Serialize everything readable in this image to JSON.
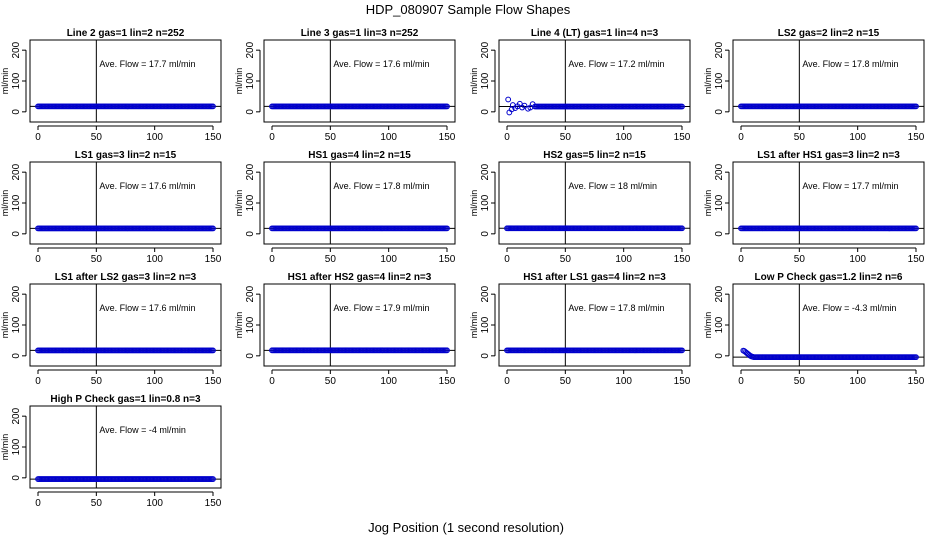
{
  "figure": {
    "title": "HDP_080907  Sample Flow Shapes",
    "xlabel": "Jog Position (1 second resolution)"
  },
  "colors": {
    "points": "#0000cc",
    "frame": "#000000"
  },
  "chart_data": [
    {
      "type": "scatter",
      "title": "Line 2 gas=1 lin=2 n=252",
      "annotation": "Ave. Flow =  17.7  ml/min",
      "ylabel": "ml/min",
      "xlim": [
        0,
        150
      ],
      "ylim": [
        -20,
        220
      ],
      "xticks": [
        0,
        50,
        100,
        150
      ],
      "yticks": [
        0,
        100,
        200
      ],
      "vline_x": 50,
      "hline_y": 17.7,
      "series": [
        {
          "name": "flow",
          "pattern": "steady",
          "x_range": [
            0,
            150
          ],
          "level": 17.7
        }
      ]
    },
    {
      "type": "scatter",
      "title": "Line 3 gas=1 lin=3 n=252",
      "annotation": "Ave. Flow =  17.6  ml/min",
      "ylabel": "ml/min",
      "xlim": [
        0,
        150
      ],
      "ylim": [
        -20,
        220
      ],
      "xticks": [
        0,
        50,
        100,
        150
      ],
      "yticks": [
        0,
        100,
        200
      ],
      "vline_x": 50,
      "hline_y": 17.6,
      "series": [
        {
          "name": "flow",
          "pattern": "steady",
          "x_range": [
            0,
            150
          ],
          "level": 17.6
        }
      ]
    },
    {
      "type": "scatter",
      "title": "Line 4 (LT) gas=1 lin=4 n=3",
      "annotation": "Ave. Flow =  17.2  ml/min",
      "ylabel": "ml/min",
      "xlim": [
        0,
        150
      ],
      "ylim": [
        -20,
        220
      ],
      "xticks": [
        0,
        50,
        100,
        150
      ],
      "yticks": [
        0,
        100,
        200
      ],
      "vline_x": 50,
      "hline_y": 17.2,
      "series": [
        {
          "name": "flow",
          "pattern": "noisy_start",
          "x_range": [
            0,
            150
          ],
          "level": 17.2,
          "outliers": [
            [
              1,
              40
            ],
            [
              2,
              -2
            ],
            [
              4,
              8
            ],
            [
              5,
              22
            ],
            [
              7,
              12
            ],
            [
              9,
              18
            ],
            [
              11,
              26
            ],
            [
              13,
              14
            ],
            [
              15,
              20
            ],
            [
              18,
              10
            ],
            [
              20,
              14
            ],
            [
              22,
              25
            ]
          ]
        }
      ]
    },
    {
      "type": "scatter",
      "title": "LS2 gas=2 lin=2 n=15",
      "annotation": "Ave. Flow =  17.8  ml/min",
      "ylabel": "ml/min",
      "xlim": [
        0,
        150
      ],
      "ylim": [
        -20,
        220
      ],
      "xticks": [
        0,
        50,
        100,
        150
      ],
      "yticks": [
        0,
        100,
        200
      ],
      "vline_x": 50,
      "hline_y": 17.8,
      "series": [
        {
          "name": "flow",
          "pattern": "steady",
          "x_range": [
            0,
            150
          ],
          "level": 17.8
        }
      ]
    },
    {
      "type": "scatter",
      "title": "LS1 gas=3 lin=2 n=15",
      "annotation": "Ave. Flow =  17.6  ml/min",
      "ylabel": "ml/min",
      "xlim": [
        0,
        150
      ],
      "ylim": [
        -20,
        220
      ],
      "xticks": [
        0,
        50,
        100,
        150
      ],
      "yticks": [
        0,
        100,
        200
      ],
      "vline_x": 50,
      "hline_y": 17.6,
      "series": [
        {
          "name": "flow",
          "pattern": "steady",
          "x_range": [
            0,
            150
          ],
          "level": 17.6
        }
      ]
    },
    {
      "type": "scatter",
      "title": "HS1 gas=4 lin=2 n=15",
      "annotation": "Ave. Flow =  17.8  ml/min",
      "ylabel": "ml/min",
      "xlim": [
        0,
        150
      ],
      "ylim": [
        -20,
        220
      ],
      "xticks": [
        0,
        50,
        100,
        150
      ],
      "yticks": [
        0,
        100,
        200
      ],
      "vline_x": 50,
      "hline_y": 17.8,
      "series": [
        {
          "name": "flow",
          "pattern": "steady",
          "x_range": [
            0,
            150
          ],
          "level": 17.8
        }
      ]
    },
    {
      "type": "scatter",
      "title": "HS2 gas=5 lin=2 n=15",
      "annotation": "Ave. Flow =  18  ml/min",
      "ylabel": "ml/min",
      "xlim": [
        0,
        150
      ],
      "ylim": [
        -20,
        220
      ],
      "xticks": [
        0,
        50,
        100,
        150
      ],
      "yticks": [
        0,
        100,
        200
      ],
      "vline_x": 50,
      "hline_y": 18,
      "series": [
        {
          "name": "flow",
          "pattern": "steady",
          "x_range": [
            0,
            150
          ],
          "level": 18
        }
      ]
    },
    {
      "type": "scatter",
      "title": "LS1 after HS1 gas=3 lin=2 n=3",
      "annotation": "Ave. Flow =  17.7  ml/min",
      "ylabel": "ml/min",
      "xlim": [
        0,
        150
      ],
      "ylim": [
        -20,
        220
      ],
      "xticks": [
        0,
        50,
        100,
        150
      ],
      "yticks": [
        0,
        100,
        200
      ],
      "vline_x": 50,
      "hline_y": 17.7,
      "series": [
        {
          "name": "flow",
          "pattern": "steady",
          "x_range": [
            0,
            150
          ],
          "level": 17.7
        }
      ]
    },
    {
      "type": "scatter",
      "title": "LS1 after LS2 gas=3 lin=2 n=3",
      "annotation": "Ave. Flow =  17.6  ml/min",
      "ylabel": "ml/min",
      "xlim": [
        0,
        150
      ],
      "ylim": [
        -20,
        220
      ],
      "xticks": [
        0,
        50,
        100,
        150
      ],
      "yticks": [
        0,
        100,
        200
      ],
      "vline_x": 50,
      "hline_y": 17.6,
      "series": [
        {
          "name": "flow",
          "pattern": "steady",
          "x_range": [
            0,
            150
          ],
          "level": 17.6
        }
      ]
    },
    {
      "type": "scatter",
      "title": "HS1 after HS2 gas=4 lin=2 n=3",
      "annotation": "Ave. Flow =  17.9  ml/min",
      "ylabel": "ml/min",
      "xlim": [
        0,
        150
      ],
      "ylim": [
        -20,
        220
      ],
      "xticks": [
        0,
        50,
        100,
        150
      ],
      "yticks": [
        0,
        100,
        200
      ],
      "vline_x": 50,
      "hline_y": 17.9,
      "series": [
        {
          "name": "flow",
          "pattern": "steady",
          "x_range": [
            0,
            150
          ],
          "level": 17.9
        }
      ]
    },
    {
      "type": "scatter",
      "title": "HS1 after LS1 gas=4 lin=2 n=3",
      "annotation": "Ave. Flow =  17.8  ml/min",
      "ylabel": "ml/min",
      "xlim": [
        0,
        150
      ],
      "ylim": [
        -20,
        220
      ],
      "xticks": [
        0,
        50,
        100,
        150
      ],
      "yticks": [
        0,
        100,
        200
      ],
      "vline_x": 50,
      "hline_y": 17.8,
      "series": [
        {
          "name": "flow",
          "pattern": "steady",
          "x_range": [
            0,
            150
          ],
          "level": 17.8
        }
      ]
    },
    {
      "type": "scatter",
      "title": "Low P Check gas=1.2 lin=2 n=6",
      "annotation": "Ave. Flow =  -4.3  ml/min",
      "ylabel": "ml/min",
      "xlim": [
        0,
        150
      ],
      "ylim": [
        -20,
        220
      ],
      "xticks": [
        0,
        50,
        100,
        150
      ],
      "yticks": [
        0,
        100,
        200
      ],
      "vline_x": 50,
      "hline_y": -4.3,
      "series": [
        {
          "name": "flow",
          "pattern": "decay_start",
          "x_range": [
            0,
            150
          ],
          "level": -4.3,
          "start_values": [
            [
              2,
              17
            ],
            [
              3,
              15
            ],
            [
              4,
              12
            ],
            [
              5,
              9
            ],
            [
              6,
              6
            ],
            [
              7,
              3
            ],
            [
              8,
              0
            ],
            [
              9,
              -2
            ],
            [
              10,
              -3
            ]
          ]
        }
      ]
    },
    {
      "type": "scatter",
      "title": "High P Check gas=1 lin=0.8 n=3",
      "annotation": "Ave. Flow =  -4  ml/min",
      "ylabel": "ml/min",
      "xlim": [
        0,
        150
      ],
      "ylim": [
        -20,
        220
      ],
      "xticks": [
        0,
        50,
        100,
        150
      ],
      "yticks": [
        0,
        100,
        200
      ],
      "vline_x": 50,
      "hline_y": -4,
      "series": [
        {
          "name": "flow",
          "pattern": "steady",
          "x_range": [
            0,
            150
          ],
          "level": -4
        }
      ]
    }
  ]
}
